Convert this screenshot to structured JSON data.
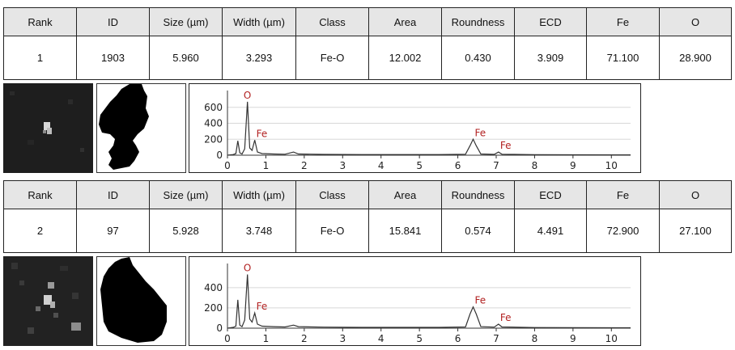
{
  "columns": [
    "Rank",
    "ID",
    "Size (µm)",
    "Width (µm)",
    "Class",
    "Area",
    "Roundness",
    "ECD",
    "Fe",
    "O"
  ],
  "particles": [
    {
      "values": [
        "1",
        "1903",
        "5.960",
        "3.293",
        "Fe-O",
        "12.002",
        "0.430",
        "3.909",
        "71.100",
        "28.900"
      ],
      "spectrum": {
        "x_ticks": [
          "0",
          "1",
          "2",
          "3",
          "4",
          "5",
          "6",
          "7",
          "8",
          "9",
          "10"
        ],
        "y_ticks": [
          {
            "label": "0",
            "value": 0
          },
          {
            "label": "200",
            "value": 200
          },
          {
            "label": "400",
            "value": 400
          },
          {
            "label": "600",
            "value": 600
          }
        ],
        "ylim": [
          0,
          750
        ],
        "xlim": [
          0,
          10.5
        ],
        "peaks": [
          {
            "label": "O",
            "energy": 0.52
          },
          {
            "label": "Fe",
            "energy": 0.71
          },
          {
            "label": "Fe",
            "energy": 6.4
          },
          {
            "label": "Fe",
            "energy": 7.06
          }
        ],
        "points": [
          [
            0.0,
            0
          ],
          [
            0.15,
            8
          ],
          [
            0.22,
            20
          ],
          [
            0.27,
            180
          ],
          [
            0.32,
            30
          ],
          [
            0.38,
            15
          ],
          [
            0.45,
            80
          ],
          [
            0.52,
            670
          ],
          [
            0.58,
            90
          ],
          [
            0.64,
            60
          ],
          [
            0.71,
            190
          ],
          [
            0.78,
            40
          ],
          [
            0.9,
            20
          ],
          [
            1.2,
            15
          ],
          [
            1.5,
            12
          ],
          [
            1.72,
            40
          ],
          [
            1.85,
            15
          ],
          [
            2.5,
            10
          ],
          [
            3.5,
            8
          ],
          [
            4.5,
            8
          ],
          [
            5.5,
            8
          ],
          [
            6.2,
            12
          ],
          [
            6.32,
            120
          ],
          [
            6.4,
            200
          ],
          [
            6.48,
            120
          ],
          [
            6.6,
            15
          ],
          [
            6.95,
            10
          ],
          [
            7.06,
            40
          ],
          [
            7.15,
            12
          ],
          [
            8.0,
            6
          ],
          [
            9.0,
            5
          ],
          [
            10.5,
            4
          ]
        ]
      }
    },
    {
      "values": [
        "2",
        "97",
        "5.928",
        "3.748",
        "Fe-O",
        "15.841",
        "0.574",
        "4.491",
        "72.900",
        "27.100"
      ],
      "spectrum": {
        "x_ticks": [
          "0",
          "1",
          "2",
          "3",
          "4",
          "5",
          "6",
          "7",
          "8",
          "9",
          "10"
        ],
        "y_ticks": [
          {
            "label": "0",
            "value": 0
          },
          {
            "label": "200",
            "value": 200
          },
          {
            "label": "400",
            "value": 400
          }
        ],
        "ylim": [
          0,
          590
        ],
        "xlim": [
          0,
          10.5
        ],
        "peaks": [
          {
            "label": "O",
            "energy": 0.52
          },
          {
            "label": "Fe",
            "energy": 0.71
          },
          {
            "label": "Fe",
            "energy": 6.4
          },
          {
            "label": "Fe",
            "energy": 7.06
          }
        ],
        "points": [
          [
            0.0,
            0
          ],
          [
            0.15,
            8
          ],
          [
            0.22,
            20
          ],
          [
            0.27,
            280
          ],
          [
            0.32,
            30
          ],
          [
            0.38,
            15
          ],
          [
            0.45,
            80
          ],
          [
            0.52,
            530
          ],
          [
            0.58,
            90
          ],
          [
            0.64,
            60
          ],
          [
            0.71,
            150
          ],
          [
            0.78,
            40
          ],
          [
            0.9,
            20
          ],
          [
            1.2,
            15
          ],
          [
            1.5,
            12
          ],
          [
            1.72,
            30
          ],
          [
            1.85,
            15
          ],
          [
            2.5,
            10
          ],
          [
            3.5,
            8
          ],
          [
            4.5,
            8
          ],
          [
            5.5,
            8
          ],
          [
            6.2,
            12
          ],
          [
            6.32,
            140
          ],
          [
            6.4,
            210
          ],
          [
            6.48,
            140
          ],
          [
            6.6,
            15
          ],
          [
            6.95,
            10
          ],
          [
            7.06,
            40
          ],
          [
            7.15,
            12
          ],
          [
            8.0,
            6
          ],
          [
            9.0,
            5
          ],
          [
            10.5,
            4
          ]
        ]
      }
    }
  ]
}
